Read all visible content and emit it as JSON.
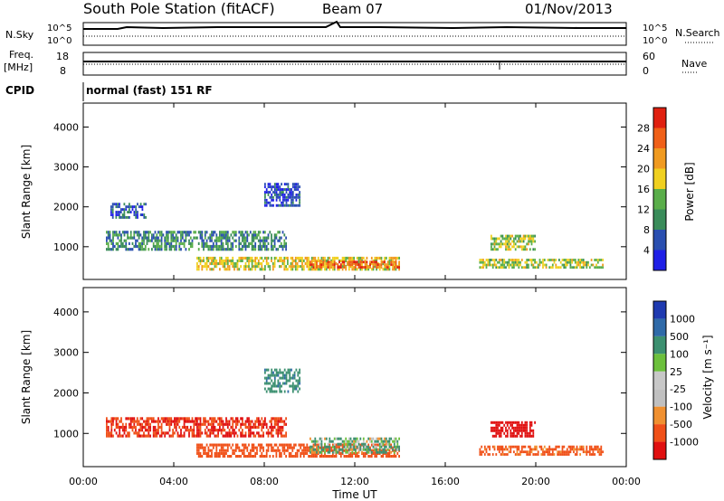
{
  "header": {
    "title": "South Pole Station (fitACF)",
    "beam": "Beam 07",
    "date": "01/Nov/2013"
  },
  "params": {
    "nsky_label": "N.Sky",
    "nsearch_label": "N.Search",
    "freq_label": "Freq.",
    "freq_unit": "[MHz]",
    "nave_label": "Nave",
    "cpid_label": "CPID",
    "cpid_value": "normal (fast) 151 RF",
    "noise_ticks": [
      "10^5",
      "10^0"
    ],
    "freq_ticks": [
      "18",
      "8"
    ],
    "nave_ticks": [
      "60",
      "0"
    ]
  },
  "colors": {
    "power": [
      "#1f1fe6",
      "#2a4fb0",
      "#3a8c5a",
      "#5aae4a",
      "#f0d020",
      "#f09a20",
      "#f06018",
      "#e02010"
    ],
    "velocity": [
      "#e01010",
      "#f05018",
      "#f09030",
      "#c0c0c0",
      "#c8c8c8",
      "#6cc03c",
      "#3c9070",
      "#2f6aa8",
      "#1f3ab0"
    ]
  },
  "chart_data": [
    {
      "type": "heatmap",
      "panel": "power",
      "xlabel": "",
      "ylabel": "Slant Range [km]",
      "xlim": [
        0,
        24
      ],
      "ylim": [
        180,
        4600
      ],
      "yticks": [
        "1000",
        "2000",
        "3000",
        "4000"
      ],
      "colorbar_label": "Power [dB]",
      "colorbar_ticks": [
        "4",
        "8",
        "12",
        "16",
        "20",
        "24",
        "28"
      ],
      "colorbar_range": [
        0,
        32
      ],
      "regions": [
        {
          "t0": 5.0,
          "t1": 14.0,
          "r0": 400,
          "r1": 750,
          "value": 18
        },
        {
          "t0": 10.0,
          "t1": 14.0,
          "r0": 450,
          "r1": 650,
          "value": 26
        },
        {
          "t0": 17.5,
          "t1": 23.0,
          "r0": 450,
          "r1": 700,
          "value": 16
        },
        {
          "t0": 1.0,
          "t1": 9.0,
          "r0": 900,
          "r1": 1400,
          "value": 10
        },
        {
          "t0": 1.2,
          "t1": 2.8,
          "r0": 1700,
          "r1": 2100,
          "value": 6
        },
        {
          "t0": 18.0,
          "t1": 20.0,
          "r0": 900,
          "r1": 1300,
          "value": 16
        },
        {
          "t0": 8.0,
          "t1": 9.6,
          "r0": 2000,
          "r1": 2600,
          "value": 5
        }
      ]
    },
    {
      "type": "heatmap",
      "panel": "velocity",
      "xlabel": "Time UT",
      "ylabel": "Slant Range [km]",
      "xlim": [
        0,
        24
      ],
      "ylim": [
        180,
        4600
      ],
      "xticks": [
        "00:00",
        "04:00",
        "08:00",
        "12:00",
        "16:00",
        "20:00",
        "00:00"
      ],
      "yticks": [
        "1000",
        "2000",
        "3000",
        "4000"
      ],
      "colorbar_label": "Velocity [m s⁻¹]",
      "colorbar_ticks": [
        "1000",
        "500",
        "100",
        "25",
        "-25",
        "-100",
        "-500",
        "-1000"
      ],
      "regions": [
        {
          "t0": 5.0,
          "t1": 14.0,
          "r0": 400,
          "r1": 750,
          "value": -250
        },
        {
          "t0": 10.0,
          "t1": 14.0,
          "r0": 500,
          "r1": 900,
          "value": 100
        },
        {
          "t0": 1.0,
          "t1": 9.0,
          "r0": 900,
          "r1": 1400,
          "value": -500
        },
        {
          "t0": 18.0,
          "t1": 20.0,
          "r0": 900,
          "r1": 1300,
          "value": -700
        },
        {
          "t0": 17.5,
          "t1": 23.0,
          "r0": 450,
          "r1": 700,
          "value": -200
        },
        {
          "t0": 8.0,
          "t1": 9.6,
          "r0": 2000,
          "r1": 2600,
          "value": 400
        }
      ]
    }
  ]
}
